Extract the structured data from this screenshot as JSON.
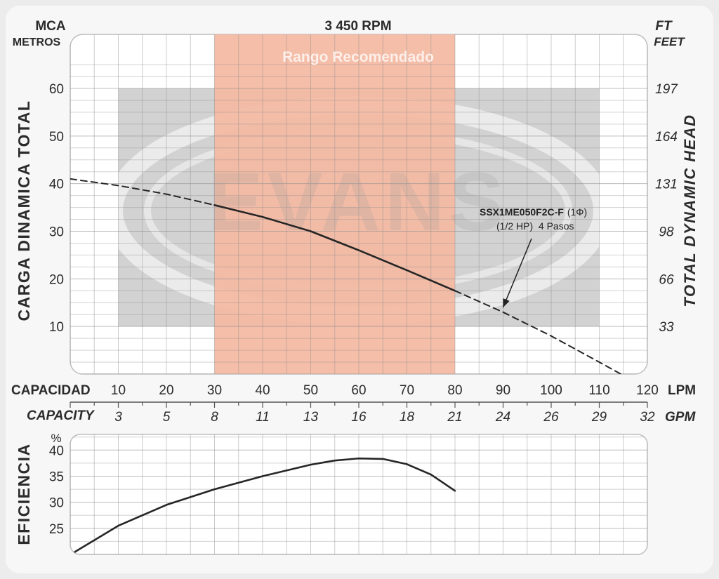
{
  "chart_data": [
    {
      "type": "line",
      "name": "head-curve",
      "rpm_label": "3 450 RPM",
      "left_unit_top": "MCA",
      "left_unit_bottom": "METROS",
      "right_unit_top": "FT",
      "right_unit_bottom": "FEET",
      "ylabel": "CARGA DINAMICA TOTAL",
      "ylabel_right": "TOTAL DYNAMIC HEAD",
      "recommended_range_label": "Rango Recomendado",
      "recommended_range": [
        30,
        80
      ],
      "watermark": "EVANS",
      "xlim": [
        0,
        120
      ],
      "ylim": [
        0,
        60
      ],
      "y_ticks": [
        10,
        20,
        30,
        40,
        50,
        60
      ],
      "y_ticks_ft": [
        {
          "m": 10,
          "label": "33"
        },
        {
          "m": 20,
          "label": "66"
        },
        {
          "m": 30,
          "label": "98"
        },
        {
          "m": 40,
          "label": "131"
        },
        {
          "m": 50,
          "label": "164"
        },
        {
          "m": 60,
          "label": "197"
        }
      ],
      "x_lpm_label": "CAPACIDAD",
      "x_lpm_unit": "LPM",
      "x_lpm_ticks": [
        10,
        20,
        30,
        40,
        50,
        60,
        70,
        80,
        90,
        100,
        110,
        120
      ],
      "x_gpm_label": "CAPACITY",
      "x_gpm_unit": "GPM",
      "x_gpm_ticks": [
        {
          "lpm": 10,
          "label": "3"
        },
        {
          "lpm": 20,
          "label": "5"
        },
        {
          "lpm": 30,
          "label": "8"
        },
        {
          "lpm": 40,
          "label": "11"
        },
        {
          "lpm": 50,
          "label": "13"
        },
        {
          "lpm": 60,
          "label": "16"
        },
        {
          "lpm": 70,
          "label": "18"
        },
        {
          "lpm": 80,
          "label": "21"
        },
        {
          "lpm": 90,
          "label": "24"
        },
        {
          "lpm": 100,
          "label": "26"
        },
        {
          "lpm": 110,
          "label": "29"
        },
        {
          "lpm": 120,
          "label": "32"
        }
      ],
      "annotation": {
        "model": "SSX1ME050F2C-F",
        "phase": "(1Φ)",
        "spec": "(1/2 HP)  4 Pasos",
        "points_to": {
          "x": 90,
          "y": 14
        }
      },
      "series": [
        {
          "style": "dashed",
          "x": [
            0,
            10,
            20,
            30
          ],
          "y": [
            41,
            39.6,
            37.8,
            35.5
          ]
        },
        {
          "style": "solid",
          "x": [
            30,
            40,
            50,
            60,
            70,
            80
          ],
          "y": [
            35.5,
            33,
            30,
            26,
            21.8,
            17.5
          ]
        },
        {
          "style": "dashed",
          "x": [
            80,
            90,
            100,
            110,
            114.5
          ],
          "y": [
            17.5,
            13,
            8,
            2.5,
            0
          ]
        }
      ]
    },
    {
      "type": "line",
      "name": "efficiency-curve",
      "ylabel": "EFICIENCIA",
      "y_unit": "%",
      "y_ticks": [
        25,
        30,
        35,
        40
      ],
      "ylim": [
        20,
        43
      ],
      "xlim": [
        0,
        120
      ],
      "series": [
        {
          "style": "solid",
          "x": [
            1,
            10,
            20,
            30,
            40,
            50,
            55,
            60,
            65,
            70,
            75,
            80
          ],
          "y": [
            20.5,
            25.5,
            29.5,
            32.5,
            35,
            37.2,
            38,
            38.4,
            38.3,
            37.3,
            35.3,
            32.2
          ]
        }
      ]
    }
  ]
}
